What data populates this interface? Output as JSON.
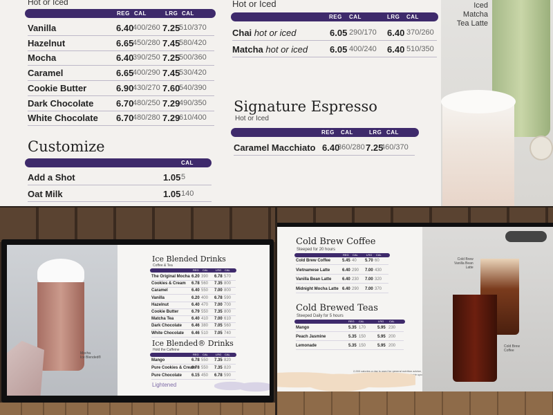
{
  "top": {
    "hot_section": {
      "subtitle": "Hot or Iced",
      "headers": {
        "reg": "REG",
        "cal1": "CAL",
        "lrg": "LRG",
        "cal2": "CAL"
      },
      "items": [
        {
          "name": "Vanilla",
          "reg": "6.40",
          "reg_cal": "400/260",
          "lrg": "7.25",
          "lrg_cal": "510/370"
        },
        {
          "name": "Hazelnut",
          "reg": "6.65",
          "reg_cal": "450/280",
          "lrg": "7.45",
          "lrg_cal": "580/420"
        },
        {
          "name": "Mocha",
          "reg": "6.40",
          "reg_cal": "390/250",
          "lrg": "7.25",
          "lrg_cal": "500/360"
        },
        {
          "name": "Caramel",
          "reg": "6.65",
          "reg_cal": "400/290",
          "lrg": "7.45",
          "lrg_cal": "530/420"
        },
        {
          "name": "Cookie Butter",
          "reg": "6.90",
          "reg_cal": "430/270",
          "lrg": "7.60",
          "lrg_cal": "540/390"
        },
        {
          "name": "Dark Chocolate",
          "reg": "6.70",
          "reg_cal": "480/250",
          "lrg": "7.29",
          "lrg_cal": "490/350"
        },
        {
          "name": "White Chocolate",
          "reg": "6.70",
          "reg_cal": "480/280",
          "lrg": "7.29",
          "lrg_cal": "610/400"
        }
      ]
    },
    "customize": {
      "title": "Customize",
      "header_cal": "CAL",
      "items": [
        {
          "name": "Add a Shot",
          "price": "1.05",
          "cal": "5"
        },
        {
          "name": "Oat Milk",
          "price": "1.05",
          "cal": "140"
        }
      ]
    },
    "tea_section": {
      "subtitle": "Hot or Iced",
      "headers": {
        "reg": "REG",
        "cal1": "CAL",
        "lrg": "LRG",
        "cal2": "CAL"
      },
      "items": [
        {
          "name": "Chai",
          "qual": " hot or iced",
          "reg": "6.05",
          "reg_cal": "290/170",
          "lrg": "6.40",
          "lrg_cal": "370/260"
        },
        {
          "name": "Matcha",
          "qual": " hot or iced",
          "reg": "6.05",
          "reg_cal": "400/240",
          "lrg": "6.40",
          "lrg_cal": "510/350"
        }
      ]
    },
    "signature": {
      "title": "Signature Espresso",
      "subtitle": "Hot or Iced",
      "headers": {
        "reg": "REG",
        "cal1": "CAL",
        "lrg": "LRG",
        "cal2": "CAL"
      },
      "items": [
        {
          "name": "Caramel Macchiato",
          "reg": "6.40",
          "reg_cal": "360/280",
          "lrg": "7.25",
          "lrg_cal": "460/370"
        }
      ]
    },
    "photo_caption": "Iced\nMatcha\nTea Latte",
    "colors": {
      "accent": "#3e2a6b",
      "background": "#f3f1ee"
    }
  },
  "bottom_left": {
    "title": "Ice Blended Drinks",
    "subtitle": "Coffee & Tea",
    "headers": {
      "reg": "REG",
      "cal1": "CAL",
      "lrg": "LRG",
      "cal2": "CAL"
    },
    "items": [
      {
        "name": "The Original Mocha",
        "reg": "6.20",
        "reg_cal": "390",
        "lrg": "6.78",
        "lrg_cal": "570"
      },
      {
        "name": "Cookies & Cream",
        "reg": "6.78",
        "reg_cal": "560",
        "lrg": "7.35",
        "lrg_cal": "800"
      },
      {
        "name": "Caramel",
        "reg": "6.40",
        "reg_cal": "550",
        "lrg": "7.00",
        "lrg_cal": "800"
      },
      {
        "name": "Vanilla",
        "reg": "6.20",
        "reg_cal": "400",
        "lrg": "6.78",
        "lrg_cal": "590"
      },
      {
        "name": "Hazelnut",
        "reg": "6.40",
        "reg_cal": "470",
        "lrg": "7.00",
        "lrg_cal": "700"
      },
      {
        "name": "Cookie Butter",
        "reg": "6.79",
        "reg_cal": "550",
        "lrg": "7.35",
        "lrg_cal": "800"
      },
      {
        "name": "Matcha Tea",
        "reg": "6.40",
        "reg_cal": "410",
        "lrg": "7.00",
        "lrg_cal": "610"
      },
      {
        "name": "Dark Chocolate",
        "reg": "6.46",
        "reg_cal": "380",
        "lrg": "7.05",
        "lrg_cal": "560"
      },
      {
        "name": "White Chocolate",
        "reg": "6.46",
        "reg_cal": "510",
        "lrg": "7.05",
        "lrg_cal": "740"
      }
    ],
    "title2": "Ice Blended® Drinks",
    "subtitle2": "Hold the Caffeine",
    "items2": [
      {
        "name": "Mango",
        "reg": "6.78",
        "reg_cal": "550",
        "lrg": "7.35",
        "lrg_cal": "820"
      },
      {
        "name": "Pure Cookies & Cream",
        "reg": "6.78",
        "reg_cal": "550",
        "lrg": "7.35",
        "lrg_cal": "820"
      },
      {
        "name": "Pure Chocolate",
        "reg": "6.15",
        "reg_cal": "450",
        "lrg": "6.78",
        "lrg_cal": "590"
      }
    ],
    "caption": "Mocha\nIce Blended®",
    "brand": "Lightened"
  },
  "bottom_right": {
    "cold_brew": {
      "title": "Cold Brew Coffee",
      "subtitle": "Steeped for 20 hours",
      "headers": {
        "reg": "REG",
        "cal1": "CAL",
        "lrg": "LRG",
        "cal2": "CAL"
      },
      "items": [
        {
          "name": "Cold Brew Coffee",
          "reg": "5.45",
          "reg_cal": "40",
          "lrg": "5.70",
          "lrg_cal": "60"
        },
        {
          "name": "Vietnamese Latte",
          "reg": "6.40",
          "reg_cal": "290",
          "lrg": "7.00",
          "lrg_cal": "430"
        },
        {
          "name": "Vanilla Bean Latte",
          "reg": "6.40",
          "reg_cal": "230",
          "lrg": "7.00",
          "lrg_cal": "320"
        },
        {
          "name": "Midnight Mocha Latte",
          "reg": "6.40",
          "reg_cal": "290",
          "lrg": "7.00",
          "lrg_cal": "370"
        }
      ]
    },
    "teas": {
      "title": "Cold Brewed Teas",
      "subtitle": "Steeped Daily for 5 hours",
      "headers": {
        "reg": "REG",
        "cal1": "CAL",
        "lrg": "LRG",
        "cal2": "CAL"
      },
      "items": [
        {
          "name": "Mango",
          "reg": "5.35",
          "reg_cal": "170",
          "lrg": "5.95",
          "lrg_cal": "230"
        },
        {
          "name": "Peach Jasmine",
          "reg": "5.35",
          "reg_cal": "150",
          "lrg": "5.95",
          "lrg_cal": "200"
        },
        {
          "name": "Lemonade",
          "reg": "5.35",
          "reg_cal": "150",
          "lrg": "5.95",
          "lrg_cal": "200"
        }
      ]
    },
    "caption1": "Cold Brew\nVanilla Bean\nLatte",
    "caption2": "Cold Brew\nCoffee",
    "footnote": "2,000 calories a day is used for general nutrition advice, but calorie needs vary. Additional nutrition information available upon request."
  }
}
